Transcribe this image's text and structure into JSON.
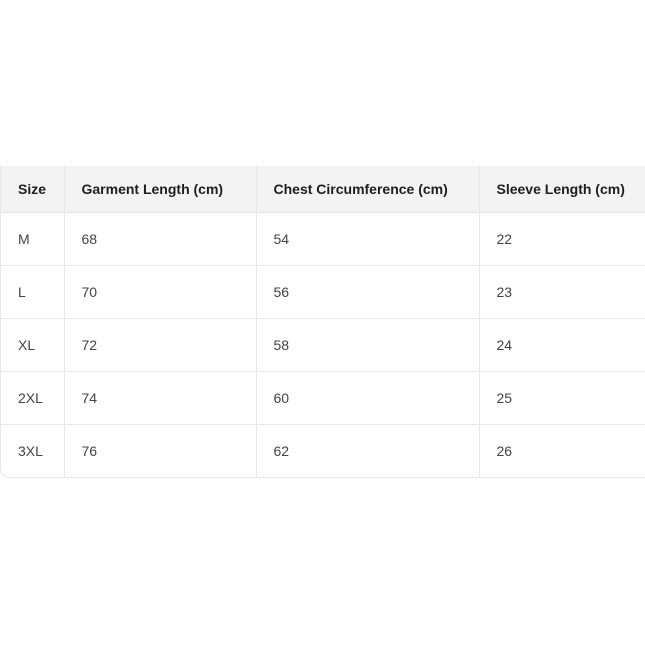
{
  "table": {
    "headers": [
      "Size",
      "Garment Length (cm)",
      "Chest Circumference (cm)",
      "Sleeve Length (cm)"
    ],
    "rows": [
      [
        "M",
        "68",
        "54",
        "22"
      ],
      [
        "L",
        "70",
        "56",
        "23"
      ],
      [
        "XL",
        "72",
        "58",
        "24"
      ],
      [
        "2XL",
        "74",
        "60",
        "25"
      ],
      [
        "3XL",
        "76",
        "62",
        "26"
      ]
    ]
  }
}
